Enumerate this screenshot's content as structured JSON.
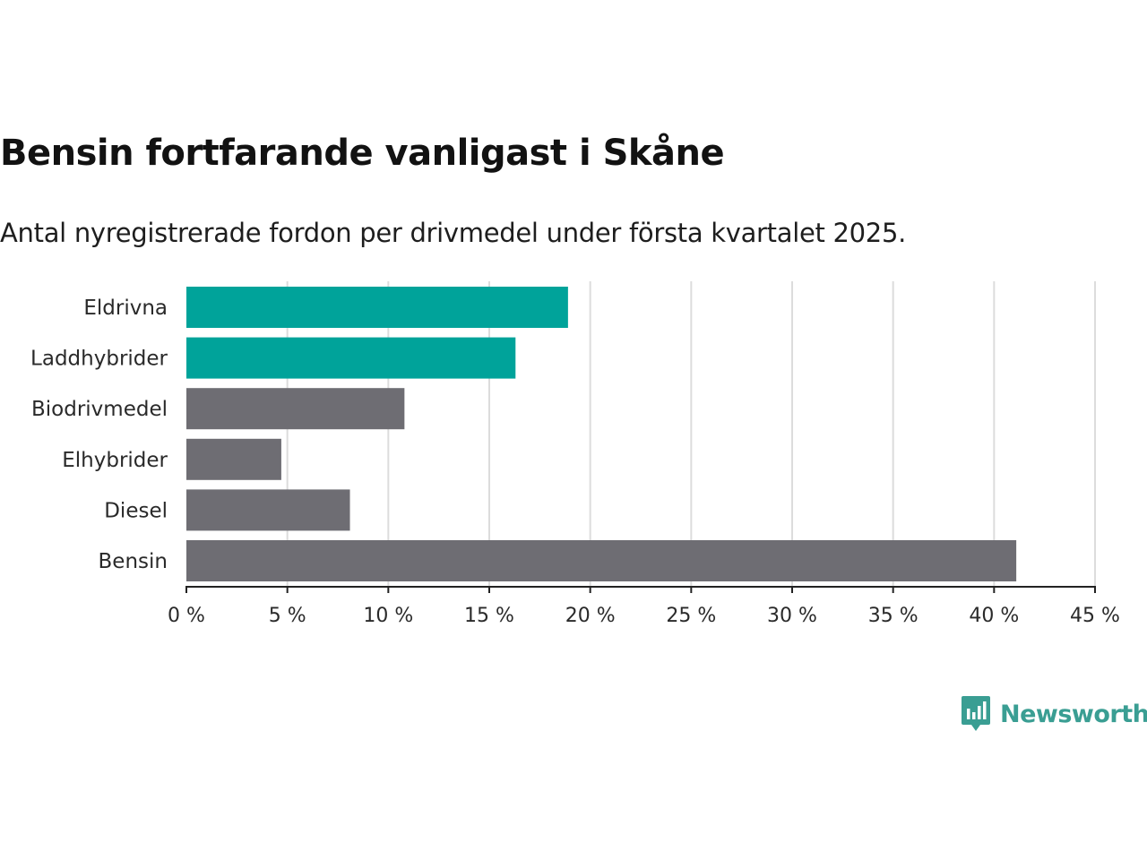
{
  "chart_data": {
    "type": "bar",
    "orientation": "horizontal",
    "title": "Bensin fortfarande vanligast i Skåne",
    "subtitle": "Antal nyregistrerade fordon per drivmedel under första kvartalet 2025.",
    "categories": [
      "Eldrivna",
      "Laddhybrider",
      "Biodrivmedel",
      "Elhybrider",
      "Diesel",
      "Bensin"
    ],
    "values": [
      18.9,
      16.3,
      10.8,
      4.7,
      8.1,
      41.1
    ],
    "colors": [
      "#00a39a",
      "#00a39a",
      "#6e6d73",
      "#6e6d73",
      "#6e6d73",
      "#6e6d73"
    ],
    "xlim": [
      0,
      45
    ],
    "xticks": [
      "0 %",
      "5 %",
      "10 %",
      "15 %",
      "20 %",
      "25 %",
      "30 %",
      "35 %",
      "40 %",
      "45 %"
    ],
    "xlabel": "",
    "ylabel": "",
    "grid": "vertical"
  },
  "branding": {
    "name": "Newsworthy",
    "color": "#3a9e93",
    "icon": "newsworthy-logo-icon"
  }
}
